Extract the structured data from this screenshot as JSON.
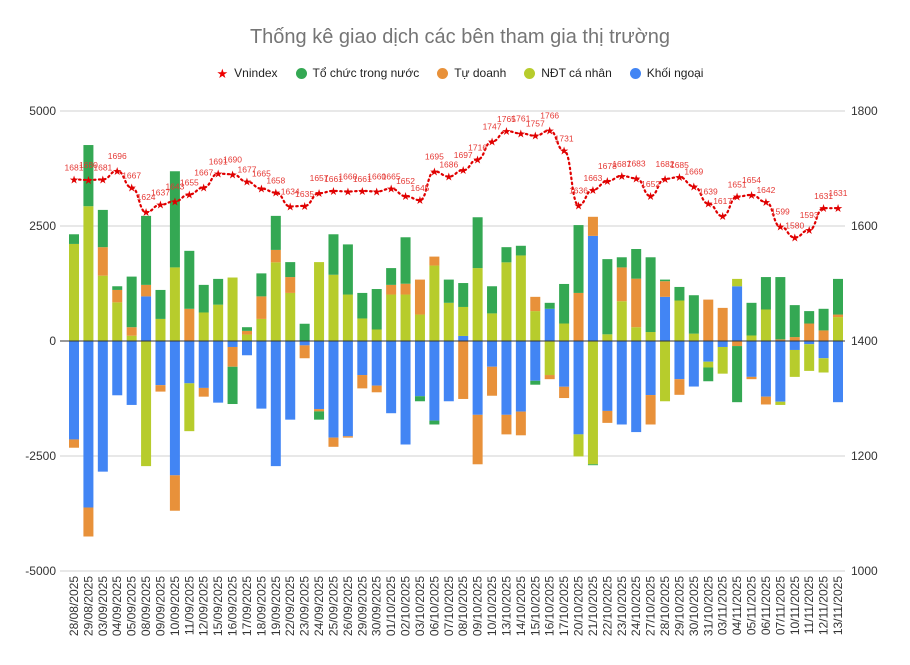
{
  "chart_data": {
    "type": "bar",
    "stacked": true,
    "title": "Thống kê giao dịch các bên tham gia thị trường",
    "legend_position": "top",
    "grid": true,
    "categories": [
      "28/08/2025",
      "29/08/2025",
      "03/09/2025",
      "04/09/2025",
      "05/09/2025",
      "08/09/2025",
      "09/09/2025",
      "10/09/2025",
      "11/09/2025",
      "12/09/2025",
      "15/09/2025",
      "16/09/2025",
      "17/09/2025",
      "18/09/2025",
      "19/09/2025",
      "22/09/2025",
      "23/09/2025",
      "24/09/2025",
      "25/09/2025",
      "26/09/2025",
      "29/09/2025",
      "30/09/2025",
      "01/10/2025",
      "02/10/2025",
      "03/10/2025",
      "06/10/2025",
      "07/10/2025",
      "08/10/2025",
      "09/10/2025",
      "10/10/2025",
      "13/10/2025",
      "14/10/2025",
      "15/10/2025",
      "16/10/2025",
      "17/10/2025",
      "20/10/2025",
      "21/10/2025",
      "22/10/2025",
      "23/10/2025",
      "24/10/2025",
      "27/10/2025",
      "28/10/2025",
      "29/10/2025",
      "30/10/2025",
      "31/10/2025",
      "03/11/2025",
      "04/11/2025",
      "05/11/2025",
      "06/11/2025",
      "07/11/2025",
      "10/11/2025",
      "11/11/2025",
      "12/11/2025",
      "13/11/2025"
    ],
    "left_axis": {
      "ylim": [
        -5000,
        5000
      ],
      "ticks": [
        "5000",
        "2500",
        "0",
        "-2500",
        "-5000"
      ]
    },
    "right_axis": {
      "ylim": [
        1000,
        1800
      ],
      "ticks": [
        "1800",
        "1600",
        "1400",
        "1200",
        "1000"
      ]
    },
    "series": [
      {
        "name": "Tổ chức trong nước",
        "color": "#34a853",
        "type": "bar",
        "values": [
          210,
          1330,
          810,
          80,
          1100,
          1500,
          630,
          2090,
          1260,
          600,
          560,
          -810,
          80,
          500,
          740,
          325,
          375,
          -180,
          880,
          1090,
          555,
          880,
          365,
          1010,
          -110,
          -85,
          505,
          520,
          1105,
          590,
          330,
          210,
          -85,
          130,
          860,
          1475,
          -20,
          1635,
          220,
          645,
          1625,
          35,
          295,
          835,
          -300,
          0,
          -1220,
          710,
          705,
          1355,
          695,
          270,
          470,
          775
        ]
      },
      {
        "name": "Tự doanh",
        "color": "#e8913a",
        "type": "bar",
        "values": [
          -180,
          -630,
          620,
          270,
          185,
          250,
          -140,
          -770,
          700,
          -190,
          0,
          -430,
          80,
          490,
          270,
          345,
          -280,
          -50,
          -200,
          -30,
          -290,
          -145,
          210,
          235,
          760,
          195,
          0,
          -1260,
          -1075,
          -630,
          -425,
          -515,
          310,
          -90,
          -245,
          1045,
          415,
          -260,
          735,
          1055,
          -640,
          340,
          -340,
          0,
          900,
          720,
          -110,
          -50,
          -170,
          35,
          85,
          380,
          230,
          55
        ]
      },
      {
        "name": "NĐT cá nhân",
        "color": "#b7cc2c",
        "type": "bar",
        "values": [
          2110,
          2930,
          1420,
          840,
          115,
          -2720,
          480,
          1600,
          -1040,
          620,
          790,
          1380,
          140,
          480,
          1710,
          1045,
          0,
          1715,
          1440,
          1010,
          490,
          250,
          1010,
          1010,
          575,
          1640,
          830,
          630,
          1585,
          600,
          1710,
          1860,
          650,
          -740,
          380,
          -480,
          -2680,
          145,
          865,
          300,
          195,
          -1310,
          880,
          160,
          -125,
          -580,
          160,
          120,
          685,
          -70,
          -585,
          -580,
          -310,
          520
        ]
      },
      {
        "name": "Khối ngoại",
        "color": "#4285f4",
        "type": "bar",
        "values": [
          -2140,
          -3620,
          -2840,
          -1180,
          -1390,
          970,
          -960,
          -2920,
          -920,
          -1020,
          -1340,
          -130,
          -310,
          -1470,
          -2720,
          -1710,
          -95,
          -1480,
          -2100,
          -2070,
          -740,
          -970,
          -1570,
          -2250,
          -1200,
          -1730,
          -1310,
          110,
          -1605,
          -560,
          -1605,
          -1535,
          -865,
          700,
          -995,
          -2030,
          2285,
          -1520,
          -1815,
          -1980,
          -1175,
          960,
          -830,
          -990,
          -450,
          -130,
          1190,
          -780,
          -1210,
          -1320,
          -195,
          -70,
          -375,
          -1330
        ]
      },
      {
        "name": "Vnindex",
        "color": "#e00000",
        "type": "line",
        "axis": "right",
        "marker": "star",
        "values": [
          1681,
          1680,
          1681,
          1696,
          1667,
          1624,
          1637,
          1643,
          1655,
          1667,
          1691,
          1690,
          1677,
          1665,
          1658,
          1634,
          1635,
          1657,
          1661,
          1660,
          1661,
          1660,
          1665,
          1652,
          1645,
          1695,
          1686,
          1697,
          1716,
          1747,
          1765,
          1761,
          1757,
          1766,
          1731,
          1636,
          1663,
          1678,
          1687,
          1683,
          1652,
          1682,
          1685,
          1669,
          1639,
          1617,
          1651,
          1654,
          1642,
          1599,
          1580,
          1593,
          1631,
          1631
        ]
      }
    ]
  }
}
